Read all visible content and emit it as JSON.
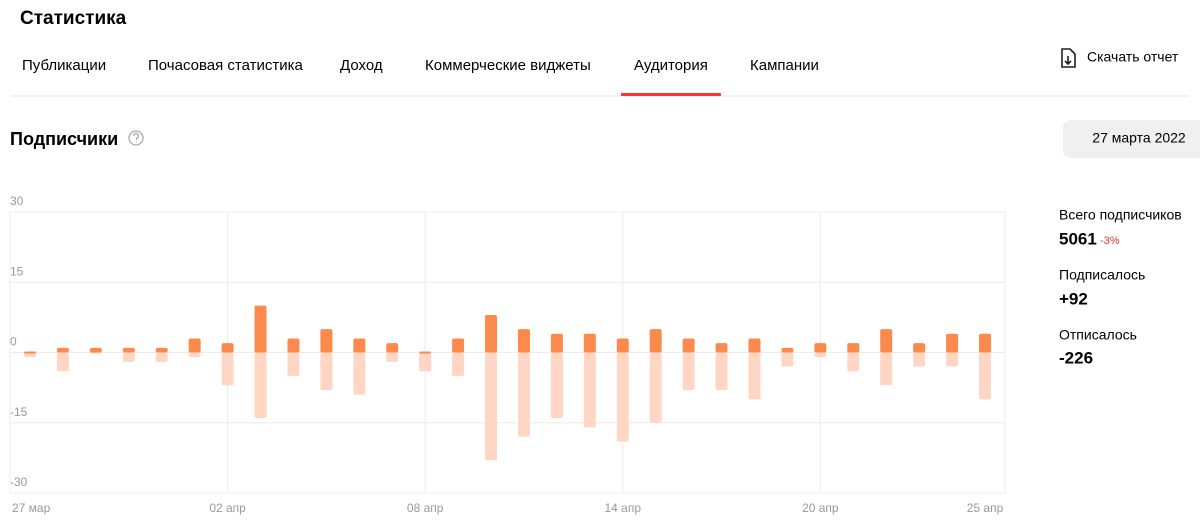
{
  "header": {
    "title": "Статистика",
    "download": "Скачать отчет"
  },
  "tabs": [
    "Публикации",
    "Почасовая статистика",
    "Доход",
    "Коммерческие виджеты",
    "Аудитория",
    "Кампании"
  ],
  "active_tab": 4,
  "section": {
    "title": "Подписчики",
    "date": "27 марта 2022"
  },
  "summary": {
    "total_label": "Всего подписчиков",
    "total": 5061,
    "total_change": {
      "value": -3,
      "label": "-3%"
    }
  },
  "chart_data": {
    "type": "bar",
    "categories": [
      "27 мар",
      null,
      null,
      null,
      null,
      null,
      "02 апр",
      null,
      null,
      null,
      null,
      null,
      "08 апр",
      null,
      null,
      null,
      null,
      null,
      "14 апр",
      null,
      null,
      null,
      null,
      null,
      "20 апр",
      null,
      null,
      null,
      null,
      "25 апр"
    ],
    "series": [
      {
        "name": "Подписалось",
        "color": "#fb8a4c",
        "total": {
          "value": 92,
          "label": "+92"
        },
        "values": [
          0,
          1,
          1,
          1,
          1,
          3,
          2,
          10,
          3,
          5,
          3,
          2,
          0,
          3,
          8,
          5,
          4,
          4,
          3,
          5,
          3,
          2,
          3,
          1,
          2,
          2,
          5,
          2,
          4,
          4
        ]
      },
      {
        "name": "Отписалось",
        "color": "#ffd5c4",
        "total": -226,
        "values": [
          -1,
          -4,
          0,
          -2,
          -2,
          -1,
          -7,
          -14,
          -5,
          -8,
          -9,
          -2,
          -4,
          -5,
          -23,
          -18,
          -14,
          -16,
          -19,
          -15,
          -8,
          -8,
          -10,
          -3,
          -1,
          -4,
          -7,
          -3,
          -3,
          -10
        ]
      }
    ],
    "ylim": [
      -30,
      30
    ],
    "yticks": [
      30,
      15,
      0,
      -15,
      -30
    ],
    "grid": true
  }
}
